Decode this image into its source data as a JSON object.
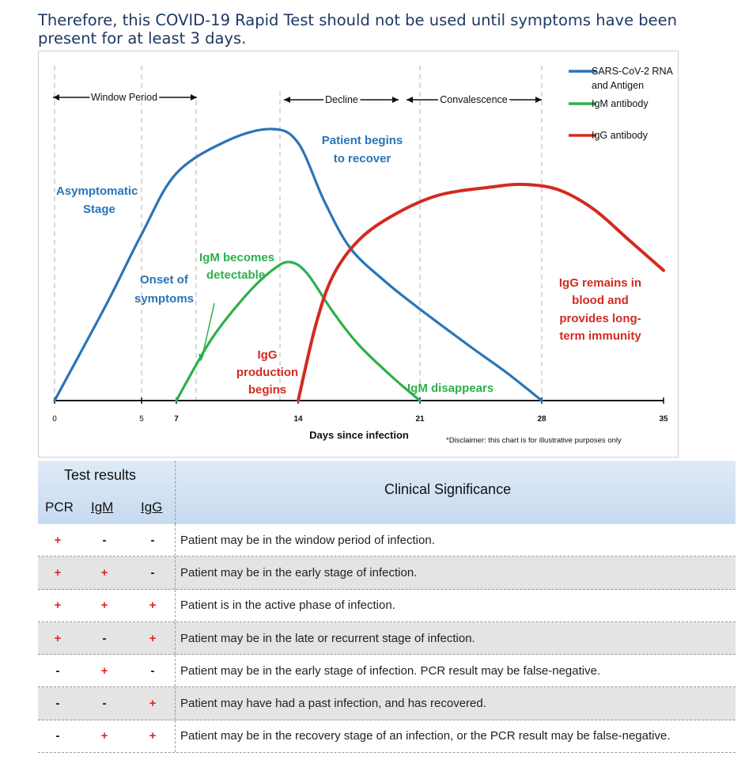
{
  "headline": "Therefore, this COVID-19 Rapid Test should not be used until symptoms have been present for at least 3 days.",
  "chart_data": {
    "type": "line",
    "xlabel": "Days since infection",
    "x_ticks": [
      0,
      5,
      7,
      14,
      21,
      28,
      35
    ],
    "xlim": [
      0,
      35
    ],
    "series": [
      {
        "name": "SARS-CoV-2 RNA and Antigen",
        "color": "#2a74b8",
        "points": [
          [
            0,
            0
          ],
          [
            3,
            0.35
          ],
          [
            5,
            0.6
          ],
          [
            7,
            0.82
          ],
          [
            10,
            0.94
          ],
          [
            12.5,
            0.98
          ],
          [
            14,
            0.93
          ],
          [
            15.5,
            0.72
          ],
          [
            17,
            0.55
          ],
          [
            19,
            0.43
          ],
          [
            21,
            0.33
          ],
          [
            24,
            0.19
          ],
          [
            26,
            0.1
          ],
          [
            28,
            0
          ]
        ]
      },
      {
        "name": "IgM antibody",
        "color": "#2db04b",
        "points": [
          [
            7,
            0
          ],
          [
            9,
            0.22
          ],
          [
            11,
            0.38
          ],
          [
            12.5,
            0.47
          ],
          [
            13.5,
            0.5
          ],
          [
            14.5,
            0.46
          ],
          [
            16,
            0.32
          ],
          [
            17.5,
            0.2
          ],
          [
            19.5,
            0.08
          ],
          [
            21,
            0
          ]
        ]
      },
      {
        "name": "IgG antibody",
        "color": "#d42a20",
        "points": [
          [
            14,
            0
          ],
          [
            15,
            0.27
          ],
          [
            16,
            0.45
          ],
          [
            17.5,
            0.58
          ],
          [
            19.5,
            0.67
          ],
          [
            22,
            0.74
          ],
          [
            25,
            0.77
          ],
          [
            27,
            0.78
          ],
          [
            29,
            0.76
          ],
          [
            31,
            0.69
          ],
          [
            33,
            0.58
          ],
          [
            35,
            0.47
          ]
        ]
      }
    ],
    "periods": [
      {
        "label": "Window Period"
      },
      {
        "label": "Decline"
      },
      {
        "label": "Convalescence"
      }
    ],
    "annotations": {
      "asymptomatic": [
        "Asymptomatic",
        "Stage"
      ],
      "onset": [
        "Onset of",
        "symptoms"
      ],
      "igm_detectable": [
        "IgM becomes",
        "detectable"
      ],
      "igg_production": [
        "IgG",
        "production",
        "begins"
      ],
      "recover": [
        "Patient begins",
        "to recover"
      ],
      "igm_disappears": "IgM disappears",
      "igg_remains": [
        "IgG remains in",
        "blood and",
        "provides long-",
        "term immunity"
      ]
    },
    "disclaimer": "*Disclaimer: this chart is for illustrative purposes only"
  },
  "table": {
    "test_results_label": "Test results",
    "clinical_label": "Clinical Significance",
    "columns": [
      "PCR",
      "IgM",
      "IgG"
    ],
    "rows": [
      {
        "pcr": "+",
        "igm": "-",
        "igg": "-",
        "text": "Patient may be in the window period of infection."
      },
      {
        "pcr": "+",
        "igm": "+",
        "igg": "-",
        "text": "Patient may be in the early stage of infection."
      },
      {
        "pcr": "+",
        "igm": "+",
        "igg": "+",
        "text": "Patient is in the active phase of infection."
      },
      {
        "pcr": "+",
        "igm": "-",
        "igg": "+",
        "text": "Patient may be in the late or recurrent stage of infection."
      },
      {
        "pcr": "-",
        "igm": "+",
        "igg": "-",
        "text": "Patient may be in the early stage of infection. PCR result may be false-negative."
      },
      {
        "pcr": "-",
        "igm": "-",
        "igg": "+",
        "text": "Patient may have had a past infection, and has recovered."
      },
      {
        "pcr": "-",
        "igm": "+",
        "igg": "+",
        "text": "Patient may be in the recovery stage of an infection, or the PCR result may be false-negative."
      }
    ]
  }
}
